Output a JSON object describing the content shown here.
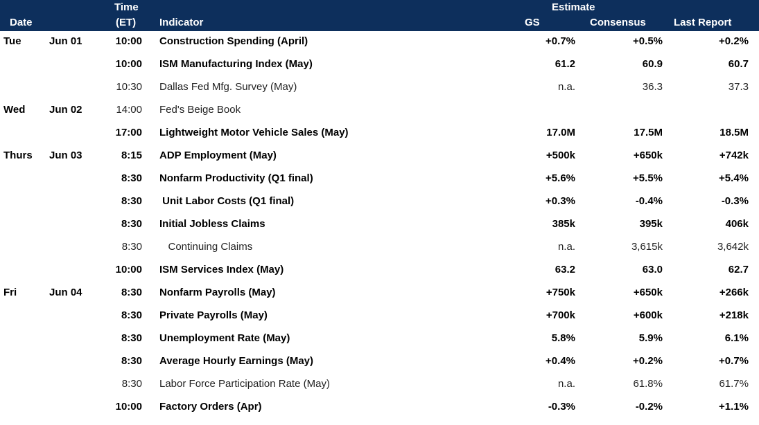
{
  "header": {
    "date": "Date",
    "time_line1": "Time",
    "time_line2": "(ET)",
    "indicator": "Indicator",
    "estimate": "Estimate",
    "gs": "GS",
    "consensus": "Consensus",
    "last_report": "Last Report"
  },
  "rows": [
    {
      "day": "Tue",
      "date": "Jun 01",
      "time": "10:00",
      "indicator": "Construction Spending (April)",
      "gs": "+0.7%",
      "consensus": "+0.5%",
      "last": "+0.2%",
      "bold": true
    },
    {
      "day": "",
      "date": "",
      "time": "10:00",
      "indicator": "ISM Manufacturing Index (May)",
      "gs": "61.2",
      "consensus": "60.9",
      "last": "60.7",
      "bold": true
    },
    {
      "day": "",
      "date": "",
      "time": "10:30",
      "indicator": "Dallas Fed Mfg. Survey (May)",
      "gs": "n.a.",
      "consensus": "36.3",
      "last": "37.3",
      "bold": false
    },
    {
      "day": "Wed",
      "date": "Jun 02",
      "time": "14:00",
      "indicator": "Fed's Beige Book",
      "gs": "",
      "consensus": "",
      "last": "",
      "bold": false
    },
    {
      "day": "",
      "date": "",
      "time": "17:00",
      "indicator": "Lightweight Motor Vehicle Sales (May)",
      "gs": "17.0M",
      "consensus": "17.5M",
      "last": "18.5M",
      "bold": true
    },
    {
      "day": "Thurs",
      "date": "Jun 03",
      "time": "8:15",
      "indicator": "ADP Employment (May)",
      "gs": "+500k",
      "consensus": "+650k",
      "last": "+742k",
      "bold": true
    },
    {
      "day": "",
      "date": "",
      "time": "8:30",
      "indicator": "Nonfarm Productivity (Q1 final)",
      "gs": "+5.6%",
      "consensus": "+5.5%",
      "last": "+5.4%",
      "bold": true
    },
    {
      "day": "",
      "date": "",
      "time": "8:30",
      "indicator": " Unit Labor Costs (Q1 final)",
      "gs": "+0.3%",
      "consensus": "-0.4%",
      "last": "-0.3%",
      "bold": true
    },
    {
      "day": "",
      "date": "",
      "time": "8:30",
      "indicator": "Initial Jobless Claims",
      "gs": "385k",
      "consensus": "395k",
      "last": "406k",
      "bold": true
    },
    {
      "day": "",
      "date": "",
      "time": "8:30",
      "indicator": "   Continuing Claims",
      "gs": "n.a.",
      "consensus": "3,615k",
      "last": "3,642k",
      "bold": false
    },
    {
      "day": "",
      "date": "",
      "time": "10:00",
      "indicator": "ISM Services Index (May)",
      "gs": "63.2",
      "consensus": "63.0",
      "last": "62.7",
      "bold": true
    },
    {
      "day": "Fri",
      "date": "Jun 04",
      "time": "8:30",
      "indicator": "Nonfarm Payrolls (May)",
      "gs": "+750k",
      "consensus": "+650k",
      "last": "+266k",
      "bold": true
    },
    {
      "day": "",
      "date": "",
      "time": "8:30",
      "indicator": "Private Payrolls (May)",
      "gs": "+700k",
      "consensus": "+600k",
      "last": "+218k",
      "bold": true
    },
    {
      "day": "",
      "date": "",
      "time": "8:30",
      "indicator": "Unemployment Rate (May)",
      "gs": "5.8%",
      "consensus": "5.9%",
      "last": "6.1%",
      "bold": true
    },
    {
      "day": "",
      "date": "",
      "time": "8:30",
      "indicator": "Average Hourly Earnings (May)",
      "gs": "+0.4%",
      "consensus": "+0.2%",
      "last": "+0.7%",
      "bold": true
    },
    {
      "day": "",
      "date": "",
      "time": "8:30",
      "indicator": "Labor Force Participation Rate (May)",
      "gs": "n.a.",
      "consensus": "61.8%",
      "last": "61.7%",
      "bold": false
    },
    {
      "day": "",
      "date": "",
      "time": "10:00",
      "indicator": "Factory Orders (Apr)",
      "gs": "-0.3%",
      "consensus": "-0.2%",
      "last": "+1.1%",
      "bold": true
    }
  ]
}
